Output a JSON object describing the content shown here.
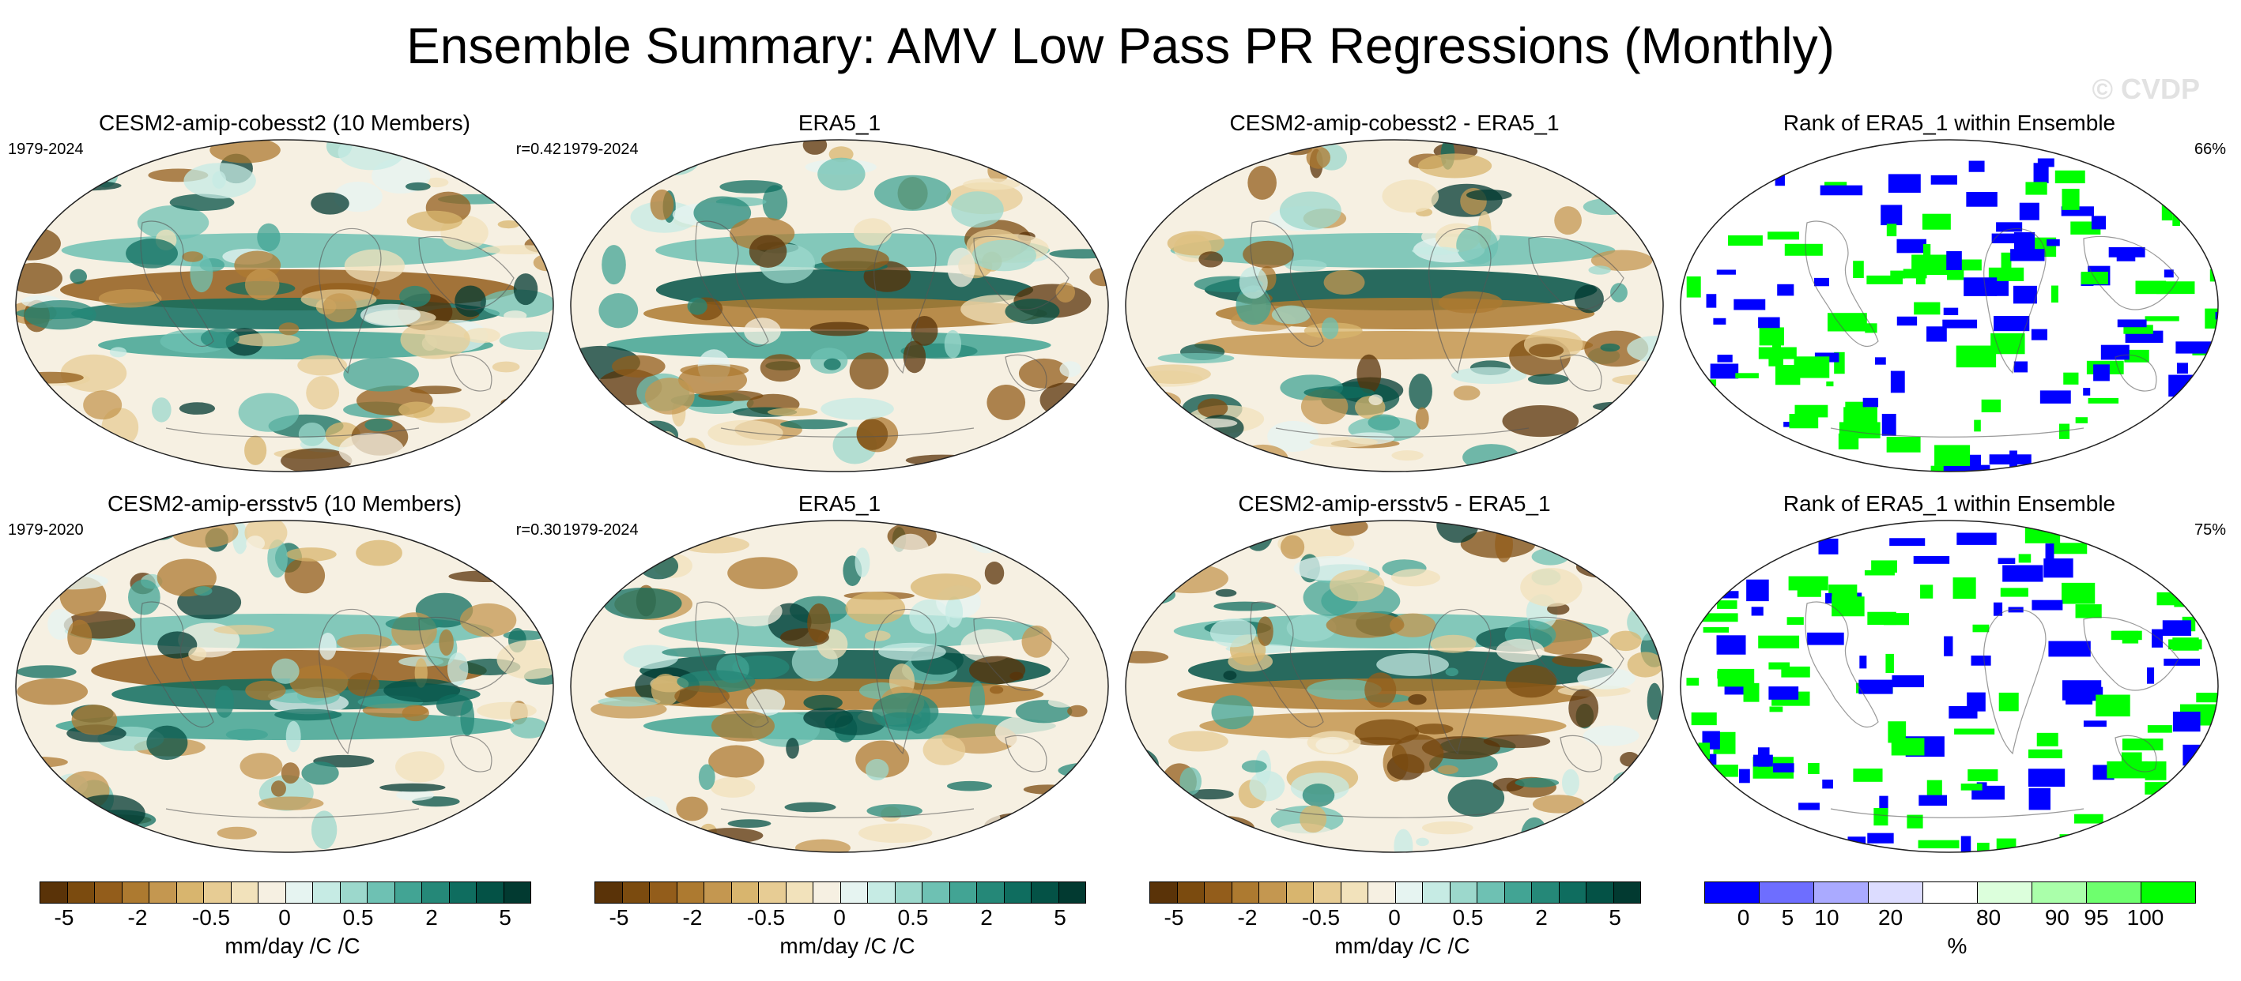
{
  "title": "Ensemble Summary: AMV Low Pass PR Regressions (Monthly)",
  "watermark": "© CVDP",
  "rows": [
    {
      "panels": [
        {
          "title": "CESM2-amip-cobesst2 (10 Members)",
          "left": "1979-2024",
          "right": "r=0.42",
          "kind": "reg"
        },
        {
          "title": "ERA5_1",
          "left": "1979-2024",
          "right": "",
          "kind": "reg"
        },
        {
          "title": "CESM2-amip-cobesst2 - ERA5_1",
          "left": "",
          "right": "",
          "kind": "reg"
        },
        {
          "title": "Rank of ERA5_1 within Ensemble",
          "left": "",
          "right": "66%",
          "kind": "rank"
        }
      ]
    },
    {
      "panels": [
        {
          "title": "CESM2-amip-ersstv5 (10 Members)",
          "left": "1979-2020",
          "right": "r=0.30",
          "kind": "reg"
        },
        {
          "title": "ERA5_1",
          "left": "1979-2024",
          "right": "",
          "kind": "reg"
        },
        {
          "title": "CESM2-amip-ersstv5 - ERA5_1",
          "left": "",
          "right": "",
          "kind": "reg"
        },
        {
          "title": "Rank of ERA5_1 within Ensemble",
          "left": "",
          "right": "75%",
          "kind": "rank"
        }
      ]
    }
  ],
  "colorbars": [
    {
      "unit": "mm/day /C /C",
      "ticks": [
        "-5",
        "-2",
        "-0.5",
        "0",
        "0.5",
        "2",
        "5"
      ],
      "kind": "reg"
    },
    {
      "unit": "mm/day /C /C",
      "ticks": [
        "-5",
        "-2",
        "-0.5",
        "0",
        "0.5",
        "2",
        "5"
      ],
      "kind": "reg"
    },
    {
      "unit": "mm/day /C /C",
      "ticks": [
        "-5",
        "-2",
        "-0.5",
        "0",
        "0.5",
        "2",
        "5"
      ],
      "kind": "reg"
    },
    {
      "unit": "%",
      "ticks": [
        "0",
        "5",
        "10",
        "20",
        "80",
        "90",
        "95",
        "100"
      ],
      "kind": "rank"
    }
  ],
  "palettes": {
    "reg": [
      "#5a3308",
      "#7b4b0f",
      "#935d1b",
      "#ad7a30",
      "#c49750",
      "#d8b56e",
      "#e7cc94",
      "#f2e2bb",
      "#f6f0e2",
      "#e6f4f1",
      "#c6ebe4",
      "#9cd8cc",
      "#6ec1b3",
      "#42a494",
      "#258878",
      "#0f6d5f",
      "#045246",
      "#023a31"
    ],
    "rank": [
      "#0000ff",
      "#6e6eff",
      "#aaaaff",
      "#dcdcff",
      "#ffffff",
      "#dcffdc",
      "#aaffaa",
      "#6eff6e",
      "#00ff00"
    ]
  }
}
